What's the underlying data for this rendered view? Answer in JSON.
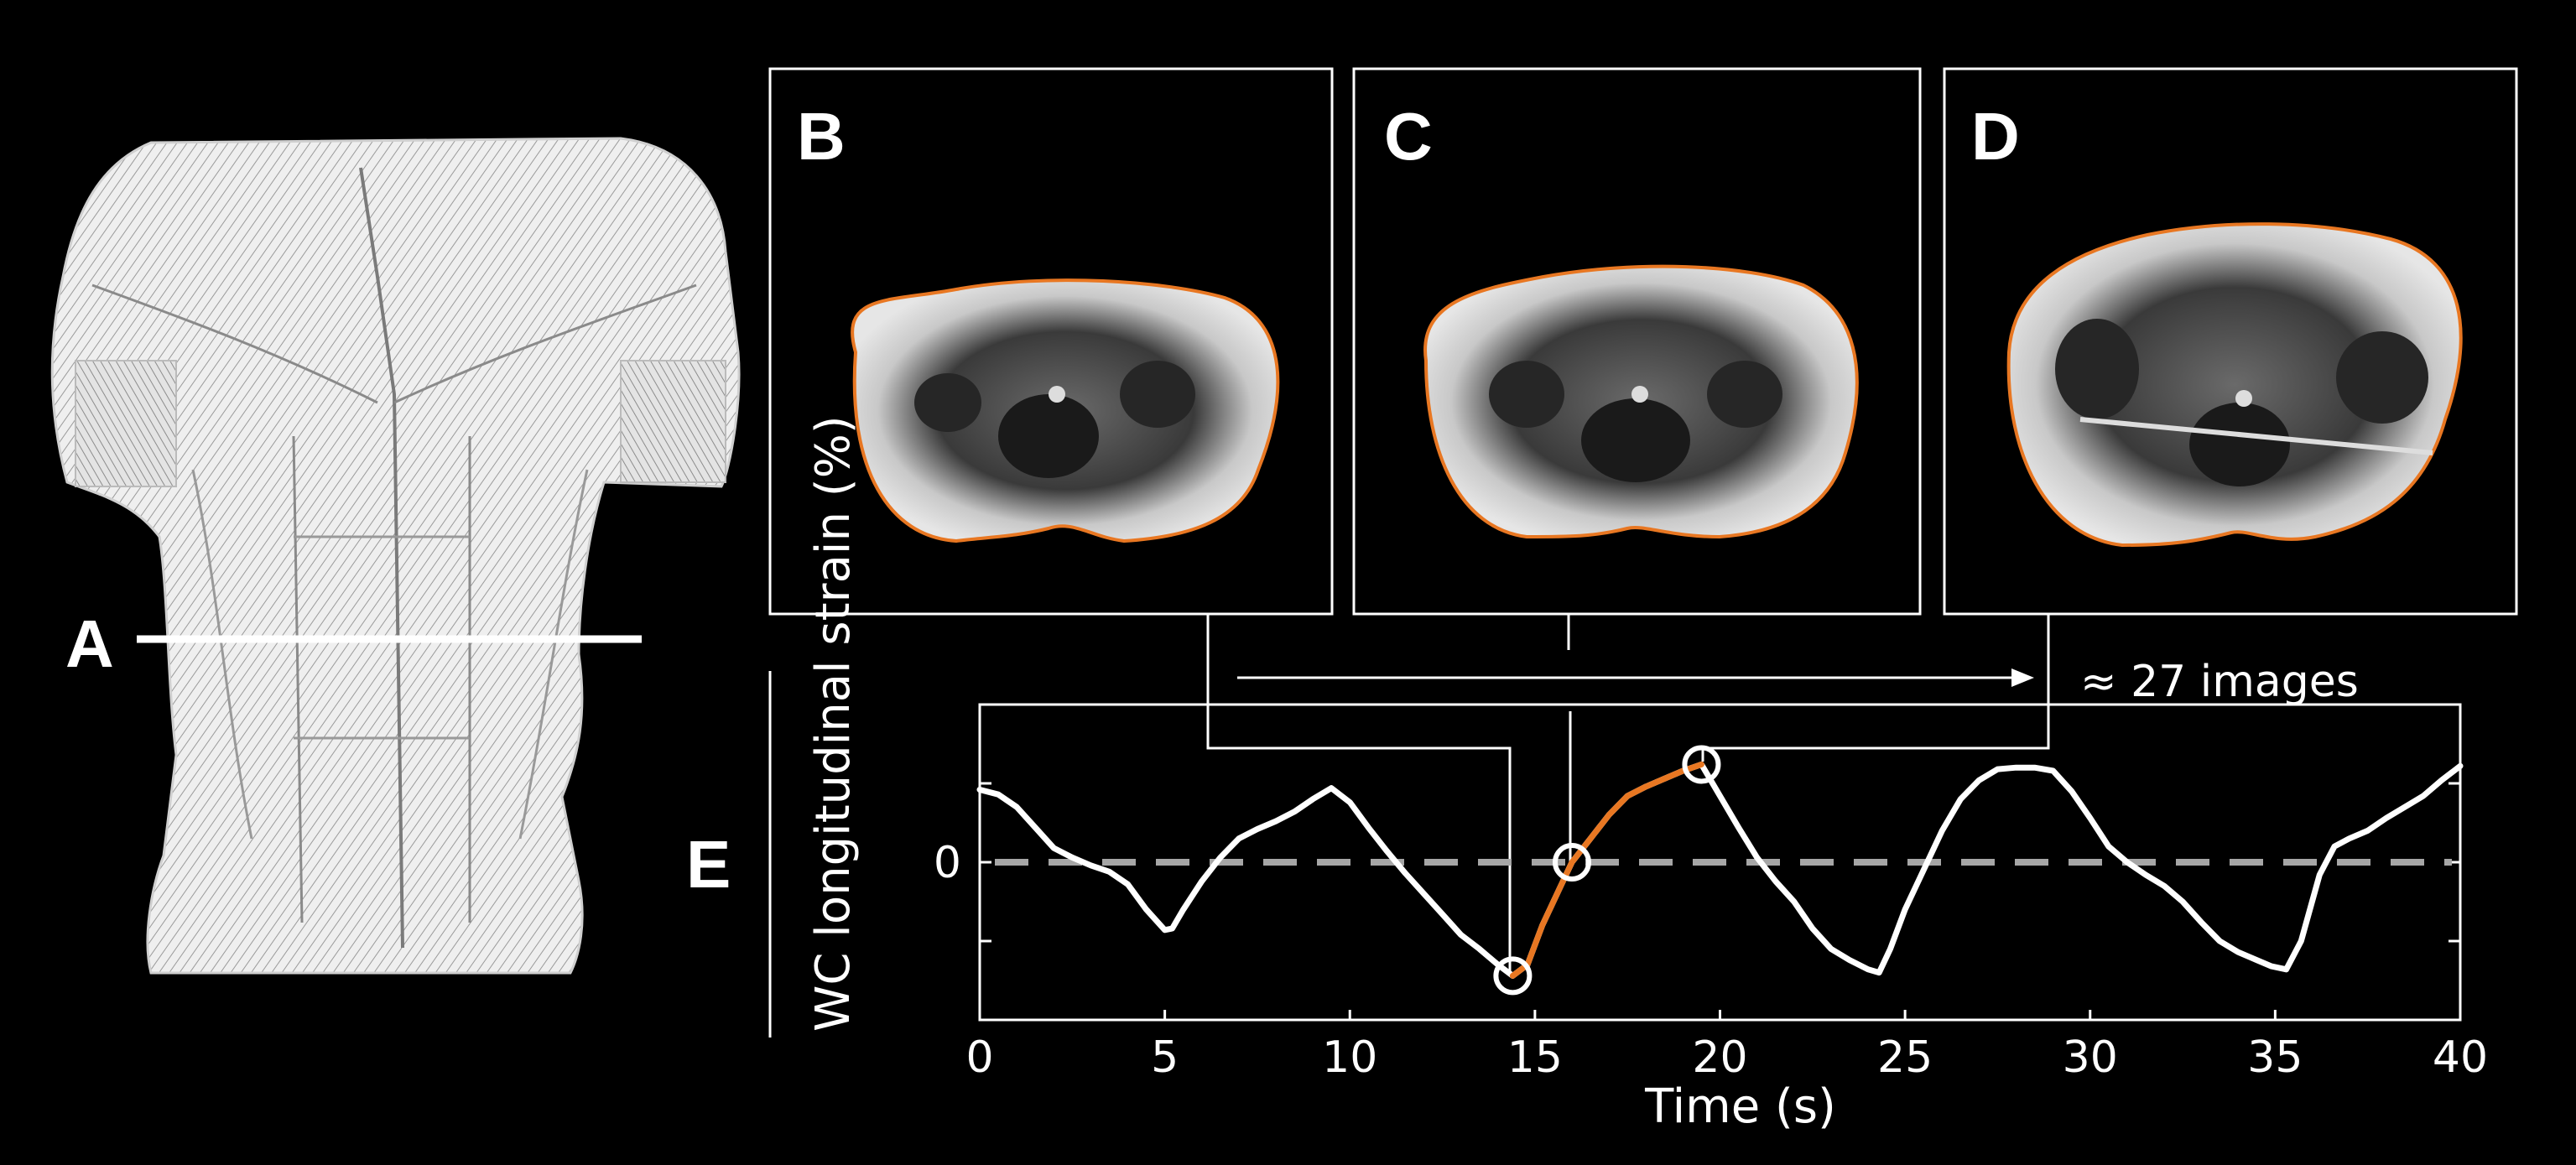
{
  "panels": {
    "a": "A",
    "b": "B",
    "c": "C",
    "d": "D",
    "e": "E"
  },
  "annotation": "≈ 27 images",
  "colors": {
    "background": "#000000",
    "trace": "#ffffff",
    "highlight": "#e87722",
    "zero_line": "#a6a6a6",
    "contour": "#e87722"
  },
  "illustration": {
    "subject": "anatomical drawing of torso muscles (front view)",
    "marker": "horizontal line at waist level labeled A"
  },
  "mri_images": [
    {
      "panel": "B",
      "description": "axial abdominal MRI slice with orange waist contour"
    },
    {
      "panel": "C",
      "description": "axial abdominal MRI slice with orange waist contour"
    },
    {
      "panel": "D",
      "description": "axial abdominal MRI slice with orange waist contour"
    }
  ],
  "chart_data": {
    "type": "line",
    "xlabel": "Time (s)",
    "ylabel": "WC longitudinal strain (%)",
    "xlim": [
      0,
      40
    ],
    "ylim": [
      -1,
      1
    ],
    "x_ticks": [
      0,
      5,
      10,
      15,
      20,
      25,
      30,
      35,
      40
    ],
    "x_tick_labels": [
      "0",
      "5",
      "10",
      "15",
      "20",
      "25",
      "30",
      "35",
      "40"
    ],
    "y_ticks": [
      -0.5,
      0,
      0.5
    ],
    "y_tick_labels": [
      "",
      "0",
      ""
    ],
    "zero_line": {
      "y": 0,
      "style": "dashed"
    },
    "grid": false,
    "series": [
      {
        "x": [
          0,
          0.5,
          1,
          1.5,
          2,
          2.5,
          3,
          3.5,
          4,
          4.5,
          5,
          5.2,
          5.5,
          6,
          6.5,
          7,
          7.5,
          8,
          8.5,
          9,
          9.5,
          10,
          10.5,
          11,
          11.5,
          12,
          12.5,
          13,
          13.5,
          14,
          14.4,
          14.8,
          15.2,
          15.6,
          16,
          16.5,
          17,
          17.5,
          18,
          18.5,
          19,
          19.5,
          20,
          20.5,
          21,
          21.5,
          22,
          22.5,
          23,
          23.5,
          24,
          24.3,
          24.6,
          25,
          25.5,
          26,
          26.5,
          27,
          27.5,
          28,
          28.5,
          29,
          29.5,
          30,
          30.5,
          31,
          31.5,
          32,
          32.5,
          33,
          33.5,
          34,
          34.5,
          34.9,
          35.3,
          35.7,
          36.2,
          36.6,
          37,
          37.5,
          38,
          38.5,
          39,
          39.5,
          40
        ],
        "y": [
          0.46,
          0.43,
          0.35,
          0.22,
          0.09,
          0.03,
          -0.02,
          -0.06,
          -0.14,
          -0.3,
          -0.43,
          -0.42,
          -0.3,
          -0.12,
          0.03,
          0.15,
          0.21,
          0.26,
          0.32,
          0.4,
          0.47,
          0.38,
          0.22,
          0.07,
          -0.07,
          -0.2,
          -0.33,
          -0.46,
          -0.55,
          -0.65,
          -0.72,
          -0.65,
          -0.4,
          -0.2,
          0.0,
          0.15,
          0.3,
          0.42,
          0.48,
          0.53,
          0.58,
          0.62,
          0.42,
          0.22,
          0.03,
          -0.12,
          -0.25,
          -0.42,
          -0.55,
          -0.62,
          -0.68,
          -0.7,
          -0.55,
          -0.3,
          -0.05,
          0.2,
          0.4,
          0.52,
          0.59,
          0.6,
          0.6,
          0.58,
          0.45,
          0.28,
          0.1,
          0.0,
          -0.08,
          -0.15,
          -0.25,
          -0.38,
          -0.5,
          -0.57,
          -0.62,
          -0.66,
          -0.68,
          -0.5,
          -0.08,
          0.1,
          0.15,
          0.2,
          0.28,
          0.35,
          0.42,
          0.52,
          0.61
        ]
      }
    ],
    "highlight_segment": {
      "x_range": [
        14.4,
        19.5
      ]
    },
    "markers": [
      {
        "x": 14.4,
        "y": -0.72,
        "panel": "B"
      },
      {
        "x": 16.0,
        "y": 0.0,
        "panel": "C"
      },
      {
        "x": 19.5,
        "y": 0.62,
        "panel": "D"
      }
    ]
  }
}
